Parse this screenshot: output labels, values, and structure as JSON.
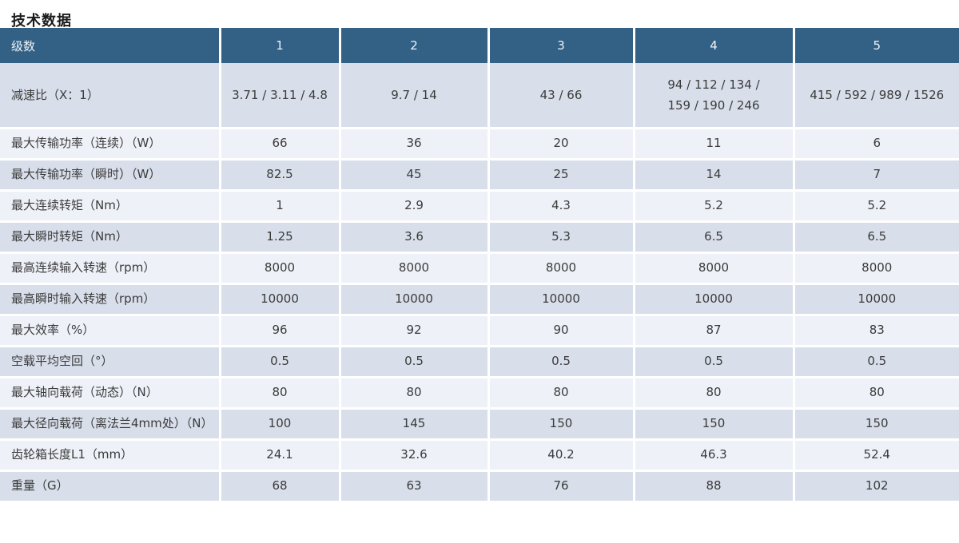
{
  "page": {
    "title": "技术数据"
  },
  "colors": {
    "header_bg": "#336186",
    "row_dark": "#d8deea",
    "row_light": "#eef1f8",
    "separator": "#ffffff",
    "header_text": "#eef2f6",
    "cell_text": "#3b3b3b"
  },
  "table": {
    "header": {
      "row_label": "级数",
      "columns": [
        "1",
        "2",
        "3",
        "4",
        "5"
      ]
    },
    "rows": [
      {
        "label": "减速比（X：1）",
        "values": [
          "3.71 / 3.11 / 4.8",
          "9.7 / 14",
          "43 / 66",
          "94 / 112 / 134 /\n159 / 190 / 246",
          "415 / 592 / 989 / 1526"
        ]
      },
      {
        "label": "最大传输功率（连续）（W）",
        "values": [
          "66",
          "36",
          "20",
          "11",
          "6"
        ]
      },
      {
        "label": "最大传输功率（瞬时）（W）",
        "values": [
          "82.5",
          "45",
          "25",
          "14",
          "7"
        ]
      },
      {
        "label": "最大连续转矩（Nm）",
        "values": [
          "1",
          "2.9",
          "4.3",
          "5.2",
          "5.2"
        ]
      },
      {
        "label": "最大瞬时转矩（Nm）",
        "values": [
          "1.25",
          "3.6",
          "5.3",
          "6.5",
          "6.5"
        ]
      },
      {
        "label": "最高连续输入转速（rpm）",
        "values": [
          "8000",
          "8000",
          "8000",
          "8000",
          "8000"
        ]
      },
      {
        "label": "最高瞬时输入转速（rpm）",
        "values": [
          "10000",
          "10000",
          "10000",
          "10000",
          "10000"
        ]
      },
      {
        "label": "最大效率（%）",
        "values": [
          "96",
          "92",
          "90",
          "87",
          "83"
        ]
      },
      {
        "label": "空载平均空回（°）",
        "values": [
          "0.5",
          "0.5",
          "0.5",
          "0.5",
          "0.5"
        ]
      },
      {
        "label": "最大轴向载荷（动态）（N）",
        "values": [
          "80",
          "80",
          "80",
          "80",
          "80"
        ]
      },
      {
        "label": "最大径向载荷（离法兰4mm处）（N）",
        "values": [
          "100",
          "145",
          "150",
          "150",
          "150"
        ]
      },
      {
        "label": "齿轮箱长度L1（mm）",
        "values": [
          "24.1",
          "32.6",
          "40.2",
          "46.3",
          "52.4"
        ]
      },
      {
        "label": "重量（G）",
        "values": [
          "68",
          "63",
          "76",
          "88",
          "102"
        ]
      }
    ]
  }
}
